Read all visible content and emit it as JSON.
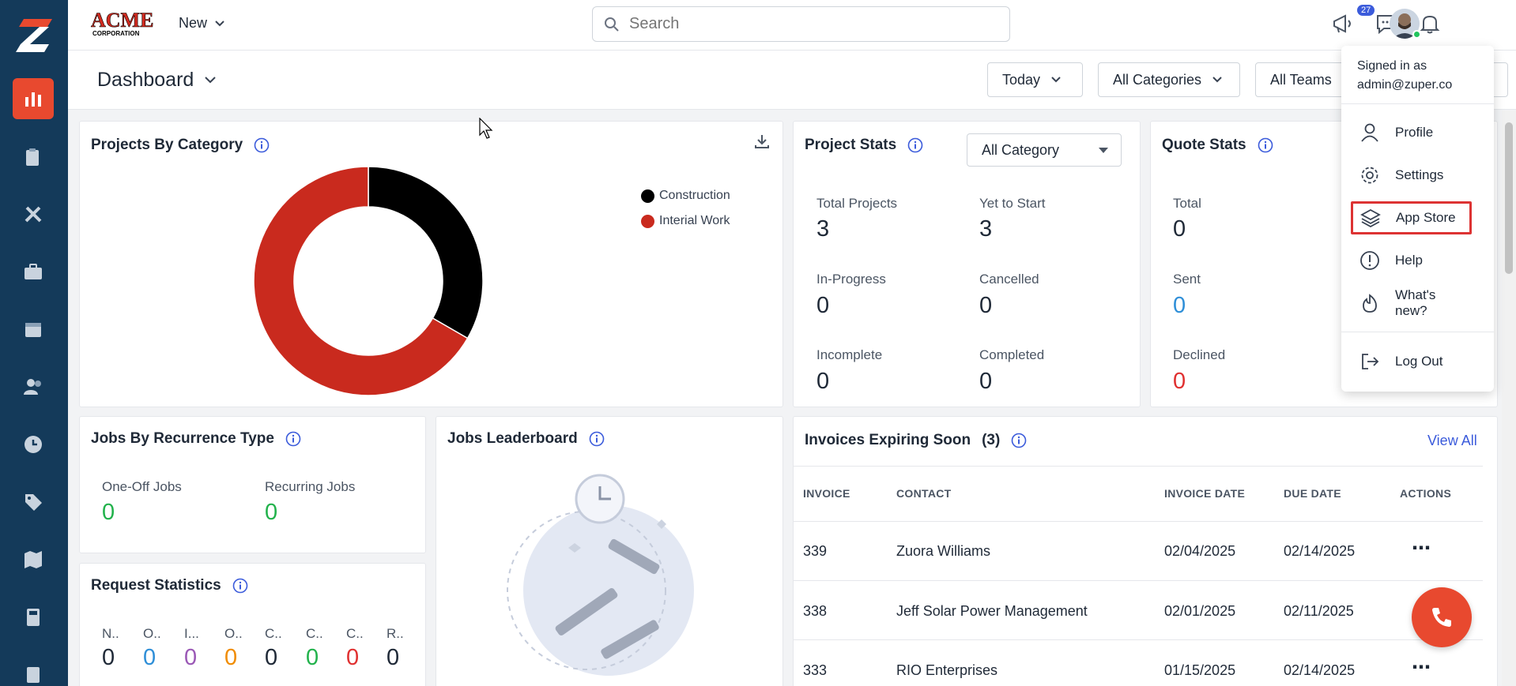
{
  "topbar": {
    "brand": "ACME",
    "brand_sub": "CORPORATION",
    "new_label": "New",
    "search_placeholder": "Search",
    "notification_count": "27"
  },
  "subheader": {
    "title": "Dashboard",
    "filters": [
      "Today",
      "All Categories",
      "All Teams"
    ]
  },
  "projects_by_category": {
    "title": "Projects By Category",
    "chart_data": {
      "type": "pie",
      "categories": [
        "Construction",
        "Interial Work"
      ],
      "values": [
        1,
        2
      ],
      "colors": [
        "#000000",
        "#c92a1e"
      ]
    }
  },
  "project_stats": {
    "title": "Project Stats",
    "select_value": "All Category",
    "stats": [
      {
        "label": "Total Projects",
        "value": "3"
      },
      {
        "label": "Yet to Start",
        "value": "3"
      },
      {
        "label": "In-Progress",
        "value": "0"
      },
      {
        "label": "Cancelled",
        "value": "0"
      },
      {
        "label": "Incomplete",
        "value": "0"
      },
      {
        "label": "Completed",
        "value": "0"
      }
    ]
  },
  "quote_stats": {
    "title": "Quote Stats",
    "stats": [
      {
        "label": "Total",
        "value": "0"
      },
      {
        "label": "Sent",
        "value": "0"
      },
      {
        "label": "Declined",
        "value": "0"
      }
    ]
  },
  "jobs_recurrence": {
    "title": "Jobs By Recurrence Type",
    "stats": [
      {
        "label": "One-Off Jobs",
        "value": "0"
      },
      {
        "label": "Recurring Jobs",
        "value": "0"
      }
    ]
  },
  "jobs_leaderboard": {
    "title": "Jobs Leaderboard"
  },
  "request_statistics": {
    "title": "Request Statistics",
    "stats": [
      {
        "label": "N..",
        "value": "0"
      },
      {
        "label": "O..",
        "value": "0"
      },
      {
        "label": "I...",
        "value": "0"
      },
      {
        "label": "O..",
        "value": "0"
      },
      {
        "label": "C..",
        "value": "0"
      },
      {
        "label": "C..",
        "value": "0"
      },
      {
        "label": "C..",
        "value": "0"
      },
      {
        "label": "R..",
        "value": "0"
      }
    ]
  },
  "invoices": {
    "title": "Invoices Expiring Soon",
    "count": "(3)",
    "view_all": "View All",
    "columns": [
      "INVOICE",
      "CONTACT",
      "INVOICE DATE",
      "DUE DATE",
      "ACTIONS"
    ],
    "rows": [
      {
        "invoice": "339",
        "contact": "Zuora Williams",
        "invoice_date": "02/04/2025",
        "due_date": "02/14/2025"
      },
      {
        "invoice": "338",
        "contact": "Jeff Solar Power Management",
        "invoice_date": "02/01/2025",
        "due_date": "02/11/2025"
      },
      {
        "invoice": "333",
        "contact": "RIO Enterprises",
        "invoice_date": "01/15/2025",
        "due_date": "02/14/2025"
      }
    ]
  },
  "user_menu": {
    "signed_in_as": "Signed in as",
    "email": "admin@zuper.co",
    "items": [
      "Profile",
      "Settings",
      "App Store",
      "Help",
      "What's new?",
      "Log Out"
    ]
  }
}
